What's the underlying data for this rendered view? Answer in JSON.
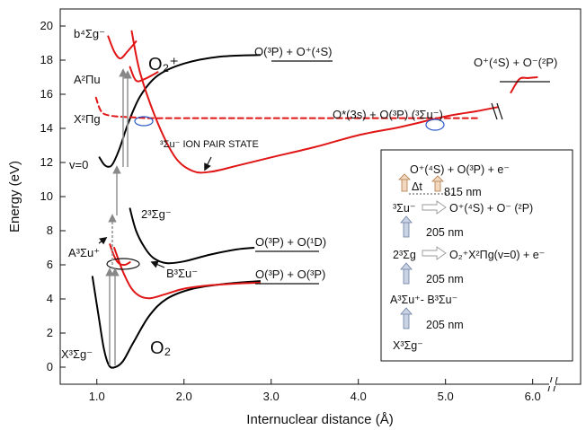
{
  "chart_data": {
    "type": "line",
    "xlabel": "Internuclear distance (Å)",
    "ylabel": "Energy (eV)",
    "xlim": [
      0.58,
      6.55
    ],
    "ylim": [
      -1.0,
      21.0
    ],
    "x_ticks": [
      "1.0",
      "2.0",
      "3.0",
      "4.0",
      "5.0",
      "6.0"
    ],
    "y_ticks": [
      "0",
      "2",
      "4",
      "6",
      "8",
      "10",
      "12",
      "14",
      "16",
      "18",
      "20"
    ],
    "y_tick_values": [
      0,
      2,
      4,
      6,
      8,
      10,
      12,
      14,
      16,
      18,
      20
    ],
    "axis_break": "//",
    "colors": {
      "neutral_curves": "#000000",
      "excited_curves": "#e01515",
      "circles": "#2a59c9",
      "arrows": "#888888"
    },
    "series": [
      {
        "state": "X3Σg- (O2 ground)",
        "color": "#000000",
        "x": [
          0.95,
          1.02,
          1.08,
          1.14,
          1.21,
          1.3,
          1.42,
          1.6,
          1.8,
          2.1,
          2.5,
          2.87
        ],
        "y": [
          5.3,
          3.0,
          1.1,
          0.1,
          0.0,
          0.35,
          1.45,
          3.0,
          4.0,
          4.6,
          4.9,
          5.05
        ]
      },
      {
        "state": "B3Σu-",
        "color": "#e01515",
        "x": [
          1.2,
          1.3,
          1.4,
          1.5,
          1.62,
          1.8,
          2.0,
          2.3,
          2.6,
          2.87
        ],
        "y": [
          7.0,
          5.6,
          4.6,
          4.15,
          4.05,
          4.3,
          4.6,
          4.8,
          4.9,
          4.95
        ]
      },
      {
        "state": "A3Σu+",
        "color": "#e01515",
        "x": [
          1.15,
          1.2,
          1.25,
          1.32,
          1.38
        ],
        "y": [
          7.2,
          6.5,
          6.1,
          6.0,
          6.15
        ]
      },
      {
        "state": "23Σg-",
        "color": "#000000",
        "x": [
          1.38,
          1.45,
          1.55,
          1.65,
          1.8,
          2.0,
          2.3,
          2.6,
          2.8
        ],
        "y": [
          9.3,
          8.0,
          7.0,
          6.4,
          6.1,
          6.2,
          6.6,
          6.9,
          7.0
        ]
      },
      {
        "state": "X2Πg (O2+)",
        "color": "#000000",
        "x": [
          1.03,
          1.08,
          1.13,
          1.18,
          1.26,
          1.36,
          1.5,
          1.7,
          2.0,
          2.4,
          2.87
        ],
        "y": [
          12.3,
          11.9,
          11.75,
          11.9,
          12.8,
          14.3,
          15.9,
          17.1,
          17.8,
          18.2,
          18.3
        ]
      },
      {
        "state": "A2Πu",
        "color": "#e01515",
        "x": [
          1.38,
          1.45,
          1.55,
          1.7
        ],
        "y": [
          17.6,
          16.8,
          16.9,
          17.3
        ]
      },
      {
        "state": "b4Σg-",
        "color": "#e01515",
        "x": [
          1.13,
          1.2,
          1.27,
          1.35,
          1.45
        ],
        "y": [
          19.4,
          18.5,
          18.1,
          18.5,
          19.1
        ]
      },
      {
        "state": "3Σu- ion pair state",
        "color": "#e01515",
        "x": [
          1.4,
          1.5,
          1.7,
          1.9,
          2.1,
          2.3,
          2.6,
          3.0,
          3.5,
          4.0,
          4.5,
          5.0,
          5.35,
          5.6
        ],
        "y": [
          19.7,
          17.2,
          14.3,
          12.3,
          11.5,
          11.45,
          11.8,
          12.3,
          12.9,
          13.6,
          14.1,
          14.7,
          15.0,
          15.25
        ]
      },
      {
        "state": "O*(3s)+O(3P) diabatic (dashed)",
        "color": "#e01515",
        "dashed": true,
        "x": [
          0.99,
          1.05,
          1.15,
          1.4,
          1.6,
          2.0,
          3.0,
          4.0,
          5.0,
          5.4
        ],
        "y": [
          15.8,
          15.0,
          14.75,
          14.65,
          14.6,
          14.6,
          14.6,
          14.6,
          14.6,
          14.6
        ]
      },
      {
        "state": "O+(4S)+O-(2P) asymptote",
        "color": "#e01515",
        "x": [
          5.75,
          5.85,
          5.95,
          6.05
        ],
        "y": [
          16.1,
          16.9,
          16.95,
          17.0
        ]
      }
    ],
    "annotations": [
      {
        "text": "O2+",
        "x": 1.48,
        "y": 18.6
      },
      {
        "text": "O2",
        "x": 1.52,
        "y": 1.4
      },
      {
        "text": "b4Σg-",
        "x": 0.62,
        "y": 20.0
      },
      {
        "text": "A2Πu",
        "x": 0.63,
        "y": 17.0
      },
      {
        "text": "X2Πg",
        "x": 0.63,
        "y": 15.0
      },
      {
        "text": "v=0",
        "x": 0.63,
        "y": 12.0
      },
      {
        "text": "23Σg-",
        "x": 1.58,
        "y": 9.3
      },
      {
        "text": "A3Σu+",
        "x": 0.63,
        "y": 7.0
      },
      {
        "text": "B3Σu-",
        "x": 1.75,
        "y": 5.2
      },
      {
        "text": "X3Σg-",
        "x": 0.62,
        "y": 0.8
      },
      {
        "text": "O(3P) + O+(4S)",
        "x": 2.78,
        "y": 18.3
      },
      {
        "text": "O*(3s) + O(3P) (3Σu-)",
        "x": 3.2,
        "y": 15.1
      },
      {
        "text": "3Σu- ION PAIR STATE",
        "x": 1.8,
        "y": 13.1
      },
      {
        "text": "O(3P) + O(1D)",
        "x": 2.78,
        "y": 7.0
      },
      {
        "text": "O(3P) + O(3P)",
        "x": 2.78,
        "y": 5.0
      },
      {
        "text": "O+(4S) + O-(2P)",
        "x": 5.25,
        "y": 18.8
      }
    ]
  },
  "labels": {
    "o2_plus": "O₂⁺",
    "o2": "O₂",
    "b4sigma": "b⁴Σg⁻",
    "a2pi": "A²Πu",
    "x2pi": "X²Πg",
    "v0": "v=0",
    "s23": "2³Σg⁻",
    "a3sig": "A³Σu⁺",
    "b3sig": "B³Σu⁻",
    "x3sig": "X³Σg⁻",
    "asym_plus": "O(³P) + O⁺(⁴S)",
    "asym_3s": "O*(3s) + O(³P) (³Σu⁻)",
    "ion_pair": "³Σu⁻ ION PAIR STATE",
    "asym_1d": "O(³P) + O(¹D)",
    "asym_3p": "O(³P) + O(³P)",
    "asym_ion": "O⁺(⁴S) + O⁻(²P)"
  },
  "inset": {
    "line1": "O⁺(⁴S) + O(³P) + e⁻",
    "dt": "Δt",
    "nm815": "815 nm",
    "sigma_u": "³Σu⁻",
    "ion_products": "O⁺(⁴S) + O⁻ (²P)",
    "nm205a": "205 nm",
    "sigma_g2": "2³Σg",
    "ionization": "O₂⁺X²Πg(v=0) + e⁻",
    "nm205b": "205 nm",
    "ab": "A³Σu⁺- B³Σu⁻",
    "nm205c": "205 nm",
    "ground": "X³Σg⁻"
  }
}
